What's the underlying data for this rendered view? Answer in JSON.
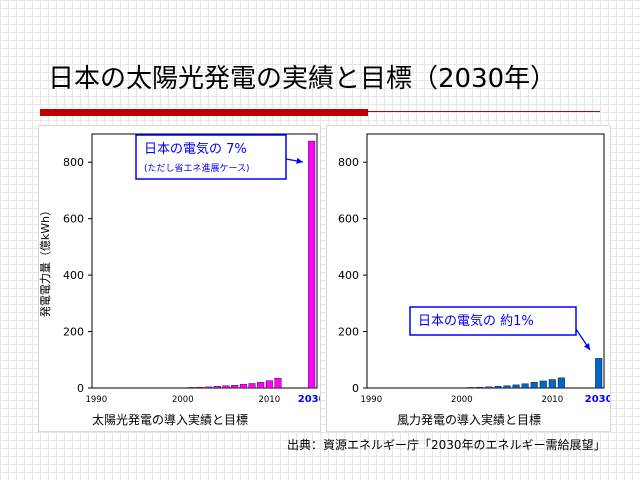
{
  "slide": {
    "title": "日本の太陽光発電の実績と目標（2030年）",
    "source": "出典：資源エネルギー庁「2030年のエネルギー需給展望」"
  },
  "colors": {
    "title_rule": "#c00000",
    "solar_bar": "#ff00ff",
    "wind_bar": "#0066cc",
    "callout_border": "#0000ff",
    "callout_text": "#0000ff"
  },
  "chart_data": [
    {
      "type": "bar",
      "ylabel": "発電電力量（億kWh）",
      "xlabel": "太陽光発電の導入実績と目標",
      "ylim": [
        0,
        900
      ],
      "yticks": [
        0,
        200,
        400,
        600,
        800
      ],
      "x_tick_labels": [
        "1990",
        "2000",
        "2010",
        "2030"
      ],
      "x_tick_at": [
        1990,
        2000,
        2010,
        2030
      ],
      "x": [
        1990,
        1991,
        1992,
        1993,
        1994,
        1995,
        1996,
        1997,
        1998,
        1999,
        2000,
        2001,
        2002,
        2003,
        2004,
        2005,
        2006,
        2007,
        2008,
        2009,
        2010,
        2011,
        2030
      ],
      "values": [
        0,
        0,
        0,
        0,
        0,
        0,
        0,
        0,
        0,
        1,
        1,
        2,
        3,
        4,
        6,
        8,
        10,
        13,
        16,
        20,
        26,
        35,
        875
      ],
      "callout": {
        "line1": "日本の電気の 7%",
        "line2": "(ただし省エネ進展ケース)"
      }
    },
    {
      "type": "bar",
      "xlabel": "風力発電の導入実績と目標",
      "ylim": [
        0,
        900
      ],
      "yticks": [
        0,
        200,
        400,
        600,
        800
      ],
      "x_tick_labels": [
        "1990",
        "2000",
        "2010",
        "2030"
      ],
      "x_tick_at": [
        1990,
        2000,
        2010,
        2030
      ],
      "x": [
        1990,
        1991,
        1992,
        1993,
        1994,
        1995,
        1996,
        1997,
        1998,
        1999,
        2000,
        2001,
        2002,
        2003,
        2004,
        2005,
        2006,
        2007,
        2008,
        2009,
        2010,
        2011,
        2030
      ],
      "values": [
        0,
        0,
        0,
        0,
        0,
        0,
        0,
        0,
        0,
        0,
        1,
        2,
        3,
        4,
        6,
        8,
        11,
        15,
        20,
        25,
        30,
        36,
        105
      ],
      "callout": {
        "line1": "日本の電気の 約1%"
      }
    }
  ]
}
